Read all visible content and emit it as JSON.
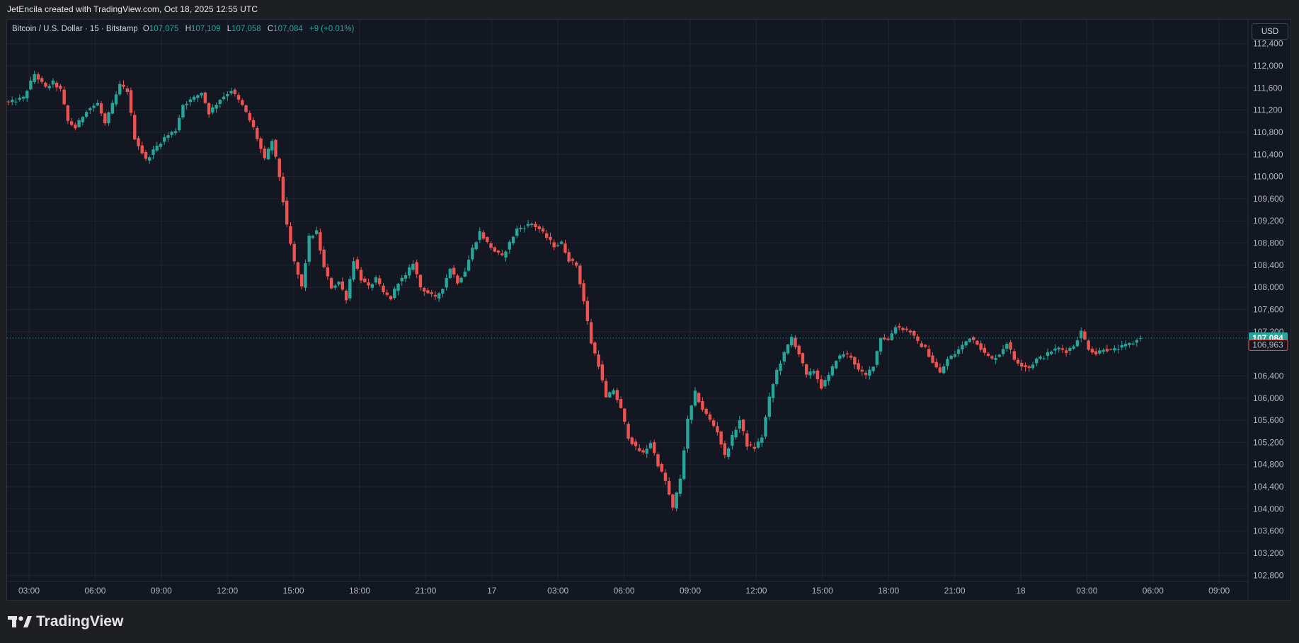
{
  "header": {
    "credit": "JetEncila created with TradingView.com, Oct 18, 2025 12:55 UTC"
  },
  "legend": {
    "symbol": "Bitcoin / U.S. Dollar · 15 · Bitstamp",
    "o_label": "O",
    "o_value": "107,075",
    "h_label": "H",
    "h_value": "107,109",
    "l_label": "L",
    "l_value": "107,058",
    "c_label": "C",
    "c_value": "107,084",
    "change": "+9 (+0.01%)"
  },
  "currency_button": "USD",
  "brand": {
    "name": "TradingView",
    "logo_icon": "tradingview-logo-icon"
  },
  "colors": {
    "up": "#26a69a",
    "down": "#ef5350",
    "background": "#131722",
    "grid": "#1f2430"
  },
  "chart_data": {
    "type": "candlestick",
    "interval": "15",
    "ylim": [
      102600,
      112700
    ],
    "y_ticks": [
      {
        "value": 112400,
        "label": "112,400"
      },
      {
        "value": 112000,
        "label": "112,000"
      },
      {
        "value": 111600,
        "label": "111,600"
      },
      {
        "value": 111200,
        "label": "111,200"
      },
      {
        "value": 110800,
        "label": "110,800"
      },
      {
        "value": 110400,
        "label": "110,400"
      },
      {
        "value": 110000,
        "label": "110,000"
      },
      {
        "value": 109600,
        "label": "109,600"
      },
      {
        "value": 109200,
        "label": "109,200"
      },
      {
        "value": 108800,
        "label": "108,800"
      },
      {
        "value": 108400,
        "label": "108,400"
      },
      {
        "value": 108000,
        "label": "108,000"
      },
      {
        "value": 107600,
        "label": "107,600"
      },
      {
        "value": 107200,
        "label": "107,200"
      },
      {
        "value": 106400,
        "label": "106,400"
      },
      {
        "value": 106000,
        "label": "106,000"
      },
      {
        "value": 105600,
        "label": "105,600"
      },
      {
        "value": 105200,
        "label": "105,200"
      },
      {
        "value": 104800,
        "label": "104,800"
      },
      {
        "value": 104400,
        "label": "104,400"
      },
      {
        "value": 104000,
        "label": "104,000"
      },
      {
        "value": 103600,
        "label": "103,600"
      },
      {
        "value": 103200,
        "label": "103,200"
      },
      {
        "value": 102800,
        "label": "102,800"
      }
    ],
    "x_ticks": [
      "03:00",
      "06:00",
      "09:00",
      "12:00",
      "15:00",
      "18:00",
      "21:00",
      "17",
      "03:00",
      "06:00",
      "09:00",
      "12:00",
      "15:00",
      "18:00",
      "21:00",
      "18",
      "03:00",
      "06:00",
      "09:00"
    ],
    "last_price": {
      "value": 107084,
      "label": "107,084"
    },
    "secondary_price": {
      "value": 106963,
      "label": "106,963"
    },
    "anchors": [
      [
        0,
        111330
      ],
      [
        4,
        111420
      ],
      [
        7,
        111850
      ],
      [
        10,
        111600
      ],
      [
        12,
        111700
      ],
      [
        14,
        111560
      ],
      [
        16,
        111000
      ],
      [
        18,
        110880
      ],
      [
        21,
        111200
      ],
      [
        24,
        111320
      ],
      [
        26,
        110950
      ],
      [
        28,
        111300
      ],
      [
        30,
        111650
      ],
      [
        32,
        111550
      ],
      [
        34,
        110700
      ],
      [
        37,
        110300
      ],
      [
        40,
        110550
      ],
      [
        42,
        110700
      ],
      [
        45,
        110840
      ],
      [
        47,
        111300
      ],
      [
        50,
        111420
      ],
      [
        52,
        111520
      ],
      [
        54,
        111150
      ],
      [
        57,
        111400
      ],
      [
        60,
        111560
      ],
      [
        63,
        111280
      ],
      [
        66,
        110880
      ],
      [
        69,
        110300
      ],
      [
        71,
        110650
      ],
      [
        73,
        110000
      ],
      [
        75,
        109100
      ],
      [
        77,
        108450
      ],
      [
        79,
        108000
      ],
      [
        81,
        108900
      ],
      [
        83,
        109000
      ],
      [
        85,
        108350
      ],
      [
        87,
        108000
      ],
      [
        89,
        108100
      ],
      [
        91,
        107800
      ],
      [
        93,
        108500
      ],
      [
        95,
        108150
      ],
      [
        97,
        108000
      ],
      [
        99,
        108150
      ],
      [
        101,
        107900
      ],
      [
        103,
        107800
      ],
      [
        105,
        108100
      ],
      [
        107,
        108200
      ],
      [
        109,
        108450
      ],
      [
        111,
        108000
      ],
      [
        113,
        107900
      ],
      [
        115,
        107800
      ],
      [
        117,
        108000
      ],
      [
        119,
        108350
      ],
      [
        121,
        108100
      ],
      [
        123,
        108300
      ],
      [
        125,
        108700
      ],
      [
        127,
        109000
      ],
      [
        129,
        108800
      ],
      [
        131,
        108650
      ],
      [
        133,
        108550
      ],
      [
        135,
        108800
      ],
      [
        137,
        109050
      ],
      [
        139,
        109100
      ],
      [
        141,
        109150
      ],
      [
        143,
        109050
      ],
      [
        145,
        108900
      ],
      [
        147,
        108750
      ],
      [
        149,
        108800
      ],
      [
        151,
        108500
      ],
      [
        153,
        108400
      ],
      [
        155,
        107750
      ],
      [
        157,
        107000
      ],
      [
        159,
        106600
      ],
      [
        161,
        106000
      ],
      [
        163,
        106150
      ],
      [
        165,
        105800
      ],
      [
        167,
        105300
      ],
      [
        169,
        105100
      ],
      [
        171,
        105000
      ],
      [
        173,
        105200
      ],
      [
        175,
        104800
      ],
      [
        177,
        104500
      ],
      [
        179,
        104000
      ],
      [
        181,
        104550
      ],
      [
        183,
        105600
      ],
      [
        185,
        106100
      ],
      [
        187,
        105800
      ],
      [
        189,
        105600
      ],
      [
        191,
        105400
      ],
      [
        193,
        104950
      ],
      [
        195,
        105300
      ],
      [
        197,
        105600
      ],
      [
        199,
        105150
      ],
      [
        201,
        105100
      ],
      [
        203,
        105300
      ],
      [
        205,
        106000
      ],
      [
        207,
        106500
      ],
      [
        209,
        106800
      ],
      [
        211,
        107100
      ],
      [
        213,
        106800
      ],
      [
        215,
        106400
      ],
      [
        217,
        106500
      ],
      [
        219,
        106200
      ],
      [
        221,
        106400
      ],
      [
        223,
        106700
      ],
      [
        225,
        106800
      ],
      [
        227,
        106750
      ],
      [
        229,
        106500
      ],
      [
        231,
        106400
      ],
      [
        233,
        106600
      ],
      [
        235,
        107100
      ],
      [
        237,
        107050
      ],
      [
        239,
        107300
      ],
      [
        241,
        107250
      ],
      [
        243,
        107200
      ],
      [
        245,
        107000
      ],
      [
        247,
        106900
      ],
      [
        249,
        106650
      ],
      [
        251,
        106450
      ],
      [
        253,
        106700
      ],
      [
        255,
        106800
      ],
      [
        257,
        106950
      ],
      [
        259,
        107100
      ],
      [
        261,
        107000
      ],
      [
        263,
        106800
      ],
      [
        265,
        106700
      ],
      [
        267,
        106800
      ],
      [
        269,
        107000
      ],
      [
        271,
        106700
      ],
      [
        273,
        106600
      ],
      [
        275,
        106550
      ],
      [
        277,
        106700
      ],
      [
        279,
        106750
      ],
      [
        281,
        106850
      ],
      [
        283,
        106900
      ],
      [
        285,
        106850
      ],
      [
        287,
        106950
      ],
      [
        289,
        107200
      ],
      [
        291,
        106900
      ],
      [
        293,
        106800
      ],
      [
        295,
        106900
      ],
      [
        297,
        106850
      ],
      [
        299,
        106900
      ],
      [
        301,
        106950
      ],
      [
        303,
        107000
      ],
      [
        305,
        107084
      ]
    ]
  }
}
